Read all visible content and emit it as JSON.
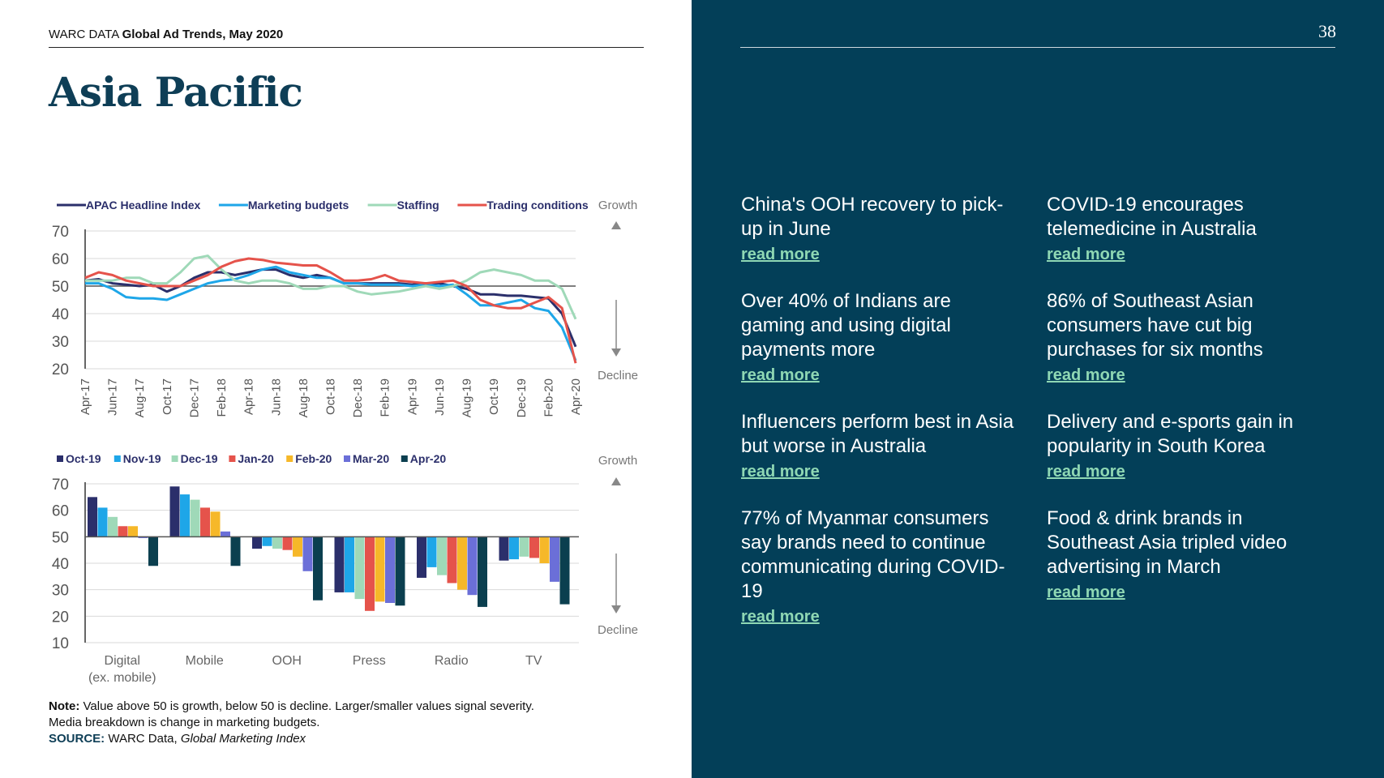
{
  "header": {
    "prefix": "WARC DATA",
    "title": "Global Ad Trends, May 2020",
    "page_number": "38"
  },
  "page_title": "Asia Pacific",
  "colors": {
    "navy_panel": "#033f58",
    "link": "#8fd8b4"
  },
  "stories": [
    {
      "headline": "China's OOH recovery to pick-up in June",
      "link": "read more"
    },
    {
      "headline": "COVID-19 encourages telemedicine in Australia",
      "link": "read more"
    },
    {
      "headline": "Over 40% of Indians are gaming and using digital payments more",
      "link": "read more"
    },
    {
      "headline": "86% of Southeast Asian consumers have cut big purchases for six months",
      "link": "read more"
    },
    {
      "headline": "Influencers perform best in Asia but worse in Australia",
      "link": "read more"
    },
    {
      "headline": "Delivery and e-sports gain in popularity in South Korea",
      "link": "read more"
    },
    {
      "headline": "77% of Myanmar consumers say brands need to continue communicating during COVID-19",
      "link": "read more"
    },
    {
      "headline": "Food & drink brands in Southeast Asia tripled video advertising in March",
      "link": "read more"
    }
  ],
  "note": {
    "label": "Note:",
    "text1": "Value above 50 is growth, below 50 is decline. Larger/smaller values signal severity.",
    "text2": "Media breakdown is change in marketing budgets.",
    "source_label": "SOURCE:",
    "source_text": "WARC Data, ",
    "source_italic": "Global Marketing Index"
  },
  "chart_data": [
    {
      "type": "line",
      "title": "",
      "ylim": [
        20,
        70
      ],
      "yticks": [
        20,
        30,
        40,
        50,
        60,
        70
      ],
      "reference_line": 50,
      "annotations": {
        "up": "Growth",
        "down": "Decline"
      },
      "x": [
        "Apr-17",
        "May-17",
        "Jun-17",
        "Jul-17",
        "Aug-17",
        "Sep-17",
        "Oct-17",
        "Nov-17",
        "Dec-17",
        "Jan-18",
        "Feb-18",
        "Mar-18",
        "Apr-18",
        "May-18",
        "Jun-18",
        "Jul-18",
        "Aug-18",
        "Sep-18",
        "Oct-18",
        "Nov-18",
        "Dec-18",
        "Jan-19",
        "Feb-19",
        "Mar-19",
        "Apr-19",
        "May-19",
        "Jun-19",
        "Jul-19",
        "Aug-19",
        "Sep-19",
        "Oct-19",
        "Nov-19",
        "Dec-19",
        "Jan-20",
        "Feb-20",
        "Mar-20",
        "Apr-20"
      ],
      "xticks": [
        "Apr-17",
        "Jun-17",
        "Aug-17",
        "Oct-17",
        "Dec-17",
        "Feb-18",
        "Apr-18",
        "Jun-18",
        "Aug-18",
        "Oct-18",
        "Dec-18",
        "Feb-19",
        "Apr-19",
        "Jun-19",
        "Aug-19",
        "Oct-19",
        "Dec-19",
        "Feb-20",
        "Apr-20"
      ],
      "series": [
        {
          "name": "APAC Headline Index",
          "color": "#2b2f6b",
          "values": [
            52,
            52.5,
            51,
            50.5,
            50,
            50.5,
            48,
            50,
            53,
            55,
            55,
            54,
            55,
            56,
            56,
            54,
            53,
            54,
            53,
            51,
            51,
            51,
            51,
            51,
            50.5,
            51,
            51,
            50,
            49,
            47,
            47,
            46.5,
            46.5,
            46,
            45.5,
            40,
            28
          ]
        },
        {
          "name": "Marketing budgets",
          "color": "#1ea6e8",
          "values": [
            51,
            51,
            49,
            46,
            45.5,
            45.5,
            45,
            47,
            49,
            51,
            52,
            52.5,
            54,
            56,
            57,
            55,
            54,
            53,
            53,
            51,
            51,
            50.5,
            50.5,
            50.5,
            50,
            50.5,
            50,
            50.5,
            47,
            43,
            43,
            44,
            45,
            42,
            41,
            35,
            23
          ]
        },
        {
          "name": "Staffing",
          "color": "#9fd9b8",
          "values": [
            52,
            52,
            52,
            53,
            53,
            51,
            51,
            55,
            60,
            61,
            56,
            52,
            51,
            52,
            52,
            51,
            49,
            49,
            50,
            50,
            48,
            47,
            47.5,
            48,
            49,
            50,
            49,
            50,
            52,
            55,
            56,
            55,
            54,
            52,
            52,
            49,
            38
          ]
        },
        {
          "name": "Trading conditions",
          "color": "#e5534b",
          "values": [
            53,
            55,
            54,
            52,
            51,
            50,
            50,
            50,
            52,
            54,
            57,
            59,
            60,
            59.5,
            58.5,
            58,
            57.5,
            57.5,
            55,
            52,
            52,
            52.5,
            54,
            52,
            51.5,
            51,
            51.5,
            52,
            50,
            45,
            43,
            42,
            42,
            44,
            46,
            42,
            22
          ]
        }
      ]
    },
    {
      "type": "bar",
      "title": "",
      "ylim": [
        10,
        70
      ],
      "yticks": [
        10,
        20,
        30,
        40,
        50,
        60,
        70
      ],
      "baseline": 50,
      "annotations": {
        "up": "Growth",
        "down": "Decline"
      },
      "categories": [
        "Digital\n(ex. mobile)",
        "Mobile",
        "OOH",
        "Press",
        "Radio",
        "TV"
      ],
      "category_labels": [
        [
          "Digital",
          "(ex. mobile)"
        ],
        [
          "Mobile"
        ],
        [
          "OOH"
        ],
        [
          "Press"
        ],
        [
          "Radio"
        ],
        [
          "TV"
        ]
      ],
      "series": [
        {
          "name": "Oct-19",
          "color": "#2b2f6b",
          "values": [
            65,
            69,
            45.5,
            29,
            34.5,
            41
          ]
        },
        {
          "name": "Nov-19",
          "color": "#1ea6e8",
          "values": [
            61,
            66,
            46.5,
            29,
            38.5,
            41.5
          ]
        },
        {
          "name": "Dec-19",
          "color": "#9fd9b8",
          "values": [
            57.5,
            64,
            45.5,
            26.5,
            35.5,
            42.5
          ]
        },
        {
          "name": "Jan-20",
          "color": "#e5534b",
          "values": [
            54,
            61,
            45,
            22,
            32.5,
            42
          ]
        },
        {
          "name": "Feb-20",
          "color": "#f6b829",
          "values": [
            54,
            59.5,
            42.5,
            25.5,
            30,
            40
          ]
        },
        {
          "name": "Mar-20",
          "color": "#6b6fd8",
          "values": [
            49.5,
            52,
            37,
            25,
            28,
            33
          ]
        },
        {
          "name": "Apr-20",
          "color": "#0b3f4f",
          "values": [
            39,
            39,
            26,
            24,
            23.5,
            24.5
          ]
        }
      ]
    }
  ]
}
